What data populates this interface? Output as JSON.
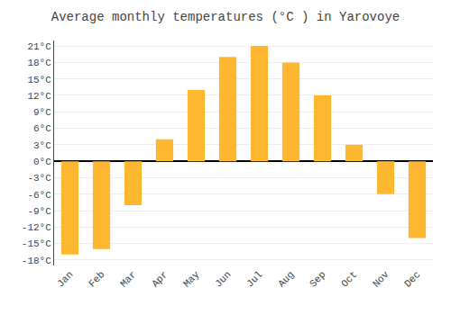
{
  "chart_data": {
    "type": "bar",
    "title": "Average monthly temperatures (°C ) in Yarovoye",
    "categories": [
      "Jan",
      "Feb",
      "Mar",
      "Apr",
      "May",
      "Jun",
      "Jul",
      "Aug",
      "Sep",
      "Oct",
      "Nov",
      "Dec"
    ],
    "values": [
      -17,
      -16,
      -8,
      4,
      13,
      19,
      21,
      18,
      12,
      3,
      -6,
      -14
    ],
    "color": "#FDB731",
    "ylim": [
      -19,
      22
    ],
    "yticks": [
      {
        "value": -18,
        "label": "-18°C"
      },
      {
        "value": -15,
        "label": "-15°C"
      },
      {
        "value": -12,
        "label": "-12°C"
      },
      {
        "value": -9,
        "label": "-9°C"
      },
      {
        "value": -6,
        "label": "-6°C"
      },
      {
        "value": -3,
        "label": "-3°C"
      },
      {
        "value": 0,
        "label": "0°C"
      },
      {
        "value": 3,
        "label": "3°C"
      },
      {
        "value": 6,
        "label": "6°C"
      },
      {
        "value": 9,
        "label": "9°C"
      },
      {
        "value": 12,
        "label": "12°C"
      },
      {
        "value": 15,
        "label": "15°C"
      },
      {
        "value": 18,
        "label": "18°C"
      },
      {
        "value": 21,
        "label": "21°C"
      }
    ],
    "grid": true
  }
}
